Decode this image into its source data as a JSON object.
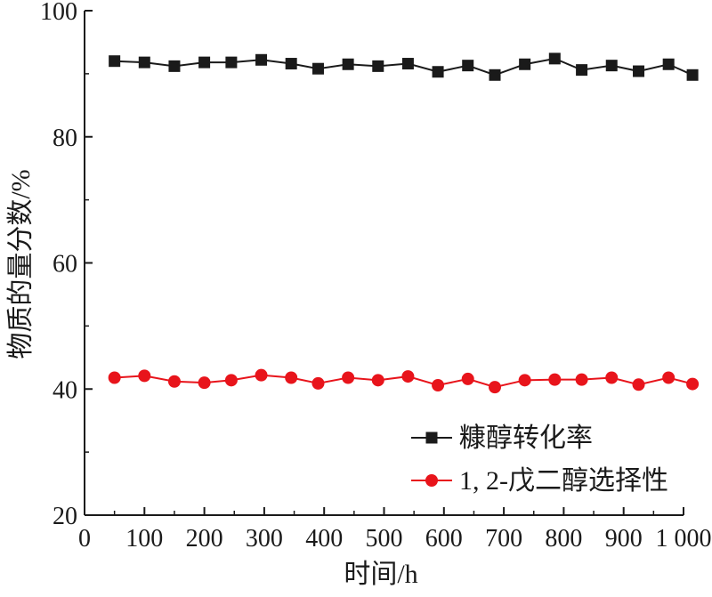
{
  "chart_data": {
    "type": "line",
    "xlabel": "时间/h",
    "ylabel": "物质的量分数/%",
    "xlim": [
      0,
      1000
    ],
    "ylim": [
      20,
      100
    ],
    "xticks": [
      0,
      100,
      200,
      300,
      400,
      500,
      600,
      700,
      800,
      900,
      1000
    ],
    "xtick_labels": [
      "0",
      "100",
      "200",
      "300",
      "400",
      "500",
      "600",
      "700",
      "800",
      "900",
      "1 000"
    ],
    "yticks": [
      20,
      40,
      60,
      80,
      100
    ],
    "ytick_labels": [
      "20",
      "40",
      "60",
      "80",
      "100"
    ],
    "grid": false,
    "legend_position": "lower-right",
    "x": [
      50,
      100,
      150,
      200,
      245,
      295,
      345,
      390,
      440,
      490,
      540,
      590,
      640,
      685,
      735,
      785,
      830,
      880,
      925,
      975,
      1015
    ],
    "series": [
      {
        "name": "糠醇转化率",
        "color": "#1a1a1a",
        "marker": "square",
        "values": [
          92.0,
          91.8,
          91.2,
          91.8,
          91.8,
          92.2,
          91.6,
          90.8,
          91.5,
          91.2,
          91.6,
          90.3,
          91.3,
          89.8,
          91.5,
          92.4,
          90.6,
          91.3,
          90.4,
          91.5,
          89.8
        ]
      },
      {
        "name": "1, 2-戊二醇选择性",
        "color": "#e8141b",
        "marker": "circle",
        "values": [
          41.8,
          42.1,
          41.2,
          41.0,
          41.4,
          42.2,
          41.8,
          40.9,
          41.8,
          41.4,
          42.0,
          40.6,
          41.6,
          40.3,
          41.4,
          41.5,
          41.5,
          41.8,
          40.7,
          41.8,
          40.8
        ]
      }
    ]
  }
}
